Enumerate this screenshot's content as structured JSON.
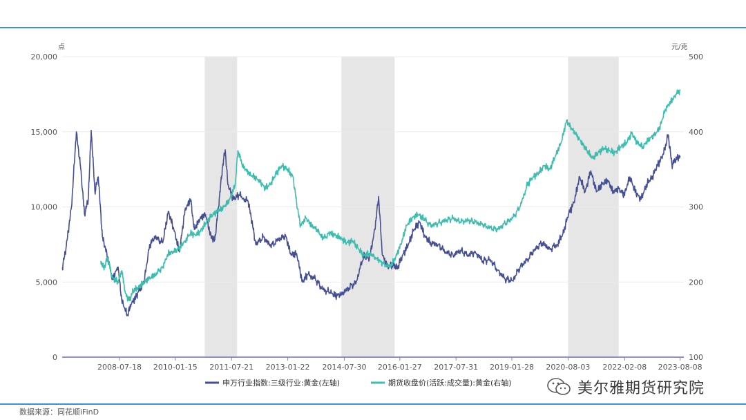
{
  "source": "数据来源：同花顺iFinD",
  "watermark": "美尔雅期货研究院",
  "chart_data": {
    "type": "line",
    "title": "",
    "left_axis": {
      "unit": "点",
      "range": [
        0,
        20000
      ],
      "ticks": [
        "0",
        "5,000",
        "10,000",
        "15,000",
        "20,000"
      ]
    },
    "right_axis": {
      "unit": "元/克",
      "range": [
        100,
        500
      ],
      "ticks": [
        "100",
        "200",
        "300",
        "400",
        "500"
      ]
    },
    "x_range": [
      2007.0,
      2023.7
    ],
    "x_ticks": [
      {
        "label": "2008-07-18",
        "t": 2008.54
      },
      {
        "label": "2010-01-15",
        "t": 2010.04
      },
      {
        "label": "2011-07-21",
        "t": 2011.55
      },
      {
        "label": "2013-01-22",
        "t": 2013.06
      },
      {
        "label": "2014-07-30",
        "t": 2014.58
      },
      {
        "label": "2016-01-27",
        "t": 2016.07
      },
      {
        "label": "2017-07-31",
        "t": 2017.58
      },
      {
        "label": "2019-01-28",
        "t": 2019.08
      },
      {
        "label": "2020-08-03",
        "t": 2020.59
      },
      {
        "label": "2022-02-08",
        "t": 2022.11
      },
      {
        "label": "2023-08-08",
        "t": 2023.6
      }
    ],
    "shaded_periods": [
      [
        2010.83,
        2011.7
      ],
      [
        2014.5,
        2015.93
      ],
      [
        2020.59,
        2021.95
      ]
    ],
    "series": [
      {
        "name": "申万行业指数:三级行业:黄金(左轴)",
        "axis": "left",
        "color": "#454f94",
        "points": [
          [
            2007.0,
            5900
          ],
          [
            2007.1,
            7200
          ],
          [
            2007.25,
            10000
          ],
          [
            2007.38,
            15000
          ],
          [
            2007.5,
            12500
          ],
          [
            2007.6,
            9500
          ],
          [
            2007.7,
            10500
          ],
          [
            2007.78,
            15100
          ],
          [
            2007.88,
            11000
          ],
          [
            2007.97,
            12000
          ],
          [
            2008.08,
            8000
          ],
          [
            2008.2,
            6900
          ],
          [
            2008.35,
            5200
          ],
          [
            2008.5,
            6000
          ],
          [
            2008.6,
            3800
          ],
          [
            2008.75,
            2800
          ],
          [
            2008.85,
            3500
          ],
          [
            2009.0,
            4100
          ],
          [
            2009.2,
            5000
          ],
          [
            2009.35,
            7500
          ],
          [
            2009.5,
            8000
          ],
          [
            2009.7,
            7600
          ],
          [
            2009.85,
            9700
          ],
          [
            2010.0,
            8500
          ],
          [
            2010.15,
            7000
          ],
          [
            2010.3,
            9800
          ],
          [
            2010.45,
            10500
          ],
          [
            2010.55,
            8500
          ],
          [
            2010.7,
            9200
          ],
          [
            2010.85,
            9500
          ],
          [
            2011.0,
            8000
          ],
          [
            2011.1,
            7800
          ],
          [
            2011.2,
            10000
          ],
          [
            2011.3,
            12500
          ],
          [
            2011.38,
            13800
          ],
          [
            2011.45,
            11500
          ],
          [
            2011.6,
            10500
          ],
          [
            2011.75,
            10800
          ],
          [
            2012.0,
            10300
          ],
          [
            2012.1,
            9000
          ],
          [
            2012.2,
            7500
          ],
          [
            2012.4,
            8000
          ],
          [
            2012.6,
            7400
          ],
          [
            2012.8,
            7800
          ],
          [
            2013.0,
            8100
          ],
          [
            2013.15,
            6800
          ],
          [
            2013.3,
            6900
          ],
          [
            2013.45,
            5000
          ],
          [
            2013.6,
            5500
          ],
          [
            2013.8,
            5200
          ],
          [
            2014.0,
            4500
          ],
          [
            2014.2,
            4300
          ],
          [
            2014.35,
            4100
          ],
          [
            2014.5,
            4200
          ],
          [
            2014.7,
            4600
          ],
          [
            2014.9,
            5000
          ],
          [
            2015.1,
            6800
          ],
          [
            2015.25,
            6500
          ],
          [
            2015.4,
            8500
          ],
          [
            2015.5,
            10700
          ],
          [
            2015.6,
            6800
          ],
          [
            2015.75,
            6000
          ],
          [
            2015.9,
            6200
          ],
          [
            2016.0,
            5900
          ],
          [
            2016.15,
            6800
          ],
          [
            2016.3,
            7500
          ],
          [
            2016.45,
            8500
          ],
          [
            2016.6,
            9000
          ],
          [
            2016.75,
            8000
          ],
          [
            2016.9,
            7600
          ],
          [
            2017.1,
            7500
          ],
          [
            2017.3,
            7000
          ],
          [
            2017.5,
            6800
          ],
          [
            2017.7,
            7100
          ],
          [
            2017.9,
            6800
          ],
          [
            2018.1,
            7000
          ],
          [
            2018.3,
            6400
          ],
          [
            2018.5,
            6500
          ],
          [
            2018.7,
            5800
          ],
          [
            2018.9,
            5200
          ],
          [
            2019.1,
            5100
          ],
          [
            2019.3,
            6000
          ],
          [
            2019.5,
            6500
          ],
          [
            2019.7,
            7200
          ],
          [
            2019.9,
            7600
          ],
          [
            2020.1,
            7200
          ],
          [
            2020.3,
            7500
          ],
          [
            2020.45,
            8200
          ],
          [
            2020.6,
            9500
          ],
          [
            2020.75,
            10300
          ],
          [
            2020.9,
            12000
          ],
          [
            2021.05,
            11000
          ],
          [
            2021.2,
            12400
          ],
          [
            2021.35,
            11000
          ],
          [
            2021.5,
            11500
          ],
          [
            2021.65,
            11800
          ],
          [
            2021.8,
            11000
          ],
          [
            2021.95,
            11200
          ],
          [
            2022.1,
            10800
          ],
          [
            2022.25,
            12000
          ],
          [
            2022.4,
            11000
          ],
          [
            2022.55,
            10500
          ],
          [
            2022.7,
            11500
          ],
          [
            2022.85,
            12000
          ],
          [
            2023.0,
            12800
          ],
          [
            2023.15,
            13500
          ],
          [
            2023.28,
            14800
          ],
          [
            2023.38,
            12800
          ],
          [
            2023.5,
            13200
          ],
          [
            2023.6,
            13400
          ]
        ]
      },
      {
        "name": "期货收盘价(活跃:成交量):黄金(右轴)",
        "axis": "right",
        "color": "#3cbdaf",
        "points": [
          [
            2008.04,
            228
          ],
          [
            2008.12,
            218
          ],
          [
            2008.22,
            232
          ],
          [
            2008.35,
            205
          ],
          [
            2008.5,
            200
          ],
          [
            2008.6,
            215
          ],
          [
            2008.7,
            185
          ],
          [
            2008.8,
            175
          ],
          [
            2008.9,
            188
          ],
          [
            2009.05,
            193
          ],
          [
            2009.2,
            200
          ],
          [
            2009.35,
            205
          ],
          [
            2009.5,
            210
          ],
          [
            2009.7,
            220
          ],
          [
            2009.85,
            238
          ],
          [
            2010.0,
            240
          ],
          [
            2010.15,
            245
          ],
          [
            2010.3,
            255
          ],
          [
            2010.45,
            265
          ],
          [
            2010.6,
            262
          ],
          [
            2010.75,
            270
          ],
          [
            2010.9,
            282
          ],
          [
            2011.05,
            290
          ],
          [
            2011.2,
            295
          ],
          [
            2011.35,
            300
          ],
          [
            2011.5,
            310
          ],
          [
            2011.65,
            330
          ],
          [
            2011.72,
            375
          ],
          [
            2011.85,
            355
          ],
          [
            2012.0,
            345
          ],
          [
            2012.15,
            340
          ],
          [
            2012.3,
            335
          ],
          [
            2012.45,
            325
          ],
          [
            2012.6,
            330
          ],
          [
            2012.75,
            345
          ],
          [
            2012.9,
            355
          ],
          [
            2013.05,
            350
          ],
          [
            2013.2,
            340
          ],
          [
            2013.3,
            305
          ],
          [
            2013.4,
            275
          ],
          [
            2013.55,
            285
          ],
          [
            2013.7,
            275
          ],
          [
            2013.85,
            270
          ],
          [
            2014.0,
            258
          ],
          [
            2014.2,
            265
          ],
          [
            2014.35,
            262
          ],
          [
            2014.5,
            258
          ],
          [
            2014.65,
            252
          ],
          [
            2014.8,
            255
          ],
          [
            2014.95,
            245
          ],
          [
            2015.1,
            235
          ],
          [
            2015.25,
            238
          ],
          [
            2015.45,
            232
          ],
          [
            2015.6,
            225
          ],
          [
            2015.8,
            220
          ],
          [
            2015.95,
            232
          ],
          [
            2016.1,
            250
          ],
          [
            2016.25,
            275
          ],
          [
            2016.4,
            285
          ],
          [
            2016.55,
            290
          ],
          [
            2016.7,
            285
          ],
          [
            2016.9,
            275
          ],
          [
            2017.1,
            278
          ],
          [
            2017.3,
            282
          ],
          [
            2017.5,
            285
          ],
          [
            2017.7,
            280
          ],
          [
            2017.9,
            282
          ],
          [
            2018.1,
            280
          ],
          [
            2018.3,
            276
          ],
          [
            2018.5,
            272
          ],
          [
            2018.7,
            270
          ],
          [
            2018.9,
            278
          ],
          [
            2019.1,
            285
          ],
          [
            2019.3,
            300
          ],
          [
            2019.5,
            330
          ],
          [
            2019.65,
            340
          ],
          [
            2019.8,
            345
          ],
          [
            2019.95,
            355
          ],
          [
            2020.1,
            350
          ],
          [
            2020.25,
            368
          ],
          [
            2020.4,
            385
          ],
          [
            2020.55,
            415
          ],
          [
            2020.68,
            405
          ],
          [
            2020.82,
            395
          ],
          [
            2020.97,
            385
          ],
          [
            2021.1,
            375
          ],
          [
            2021.25,
            365
          ],
          [
            2021.4,
            372
          ],
          [
            2021.55,
            378
          ],
          [
            2021.7,
            375
          ],
          [
            2021.85,
            372
          ],
          [
            2022.0,
            380
          ],
          [
            2022.15,
            385
          ],
          [
            2022.3,
            398
          ],
          [
            2022.45,
            385
          ],
          [
            2022.6,
            380
          ],
          [
            2022.75,
            390
          ],
          [
            2022.9,
            395
          ],
          [
            2023.05,
            405
          ],
          [
            2023.2,
            430
          ],
          [
            2023.35,
            440
          ],
          [
            2023.5,
            450
          ],
          [
            2023.6,
            455
          ]
        ]
      }
    ]
  }
}
